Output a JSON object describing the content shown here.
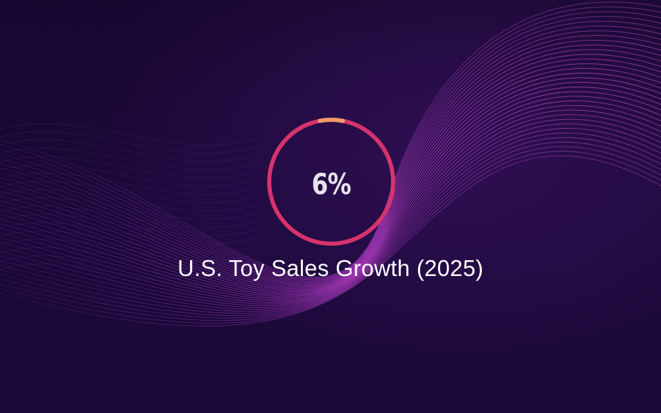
{
  "stat": {
    "value_text": "6%",
    "progress_fraction": 0.06,
    "caption": "U.S. Toy Sales Growth (2025)"
  },
  "colors": {
    "background": "#14062e",
    "ring_track": "#d6336c",
    "ring_progress": "#f39a6b",
    "wave_lines": "#c43fd6",
    "text": "#ffffff"
  }
}
